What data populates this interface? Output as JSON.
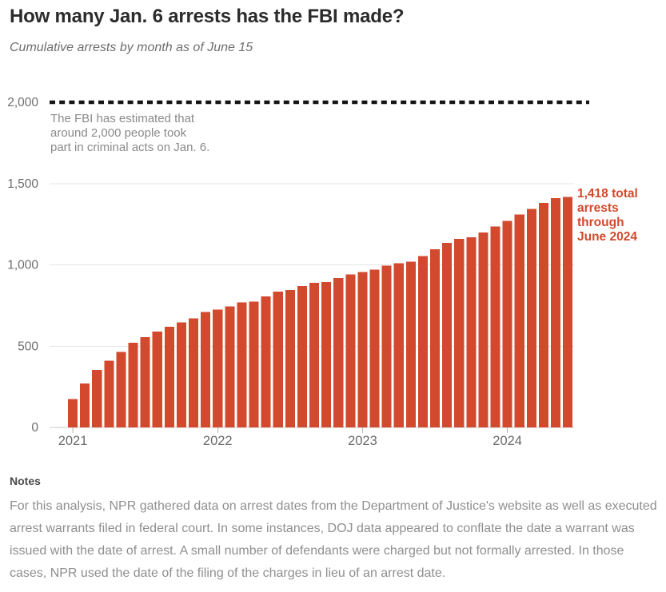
{
  "header": {
    "title": "How many Jan. 6 arrests has the FBI made?",
    "subtitle": "Cumulative arrests by month as of June 15"
  },
  "chart_data": {
    "type": "bar",
    "title": "How many Jan. 6 arrests has the FBI made?",
    "subtitle": "Cumulative arrests by month as of June 15",
    "xlabel": "",
    "ylabel": "",
    "ylim": [
      0,
      2000
    ],
    "grid": "horizontal",
    "bar_color": "#d3492d",
    "axis_label_color": "#6a6a6a",
    "gridline_color": "#e4e4e4",
    "baseline_color": "#c8c8c8",
    "tick_color": "#b5b5b5",
    "yticks": [
      0,
      500,
      1000,
      1500,
      2000
    ],
    "ytick_labels": [
      "0",
      "500",
      "1,000",
      "1,500",
      "2,000"
    ],
    "xtick_labels": [
      "2021",
      "2022",
      "2023",
      "2024"
    ],
    "xtick_month_indices": [
      0,
      12,
      24,
      36
    ],
    "x": [
      "Jan 2021",
      "Feb 2021",
      "Mar 2021",
      "Apr 2021",
      "May 2021",
      "Jun 2021",
      "Jul 2021",
      "Aug 2021",
      "Sep 2021",
      "Oct 2021",
      "Nov 2021",
      "Dec 2021",
      "Jan 2022",
      "Feb 2022",
      "Mar 2022",
      "Apr 2022",
      "May 2022",
      "Jun 2022",
      "Jul 2022",
      "Aug 2022",
      "Sep 2022",
      "Oct 2022",
      "Nov 2022",
      "Dec 2022",
      "Jan 2023",
      "Feb 2023",
      "Mar 2023",
      "Apr 2023",
      "May 2023",
      "Jun 2023",
      "Jul 2023",
      "Aug 2023",
      "Sep 2023",
      "Oct 2023",
      "Nov 2023",
      "Dec 2023",
      "Jan 2024",
      "Feb 2024",
      "Mar 2024",
      "Apr 2024",
      "May 2024",
      "Jun 2024"
    ],
    "values": [
      175,
      270,
      355,
      410,
      465,
      520,
      555,
      590,
      620,
      645,
      670,
      710,
      725,
      745,
      770,
      775,
      805,
      835,
      845,
      870,
      890,
      895,
      920,
      940,
      955,
      970,
      995,
      1010,
      1020,
      1055,
      1095,
      1135,
      1160,
      1170,
      1200,
      1235,
      1270,
      1310,
      1345,
      1380,
      1410,
      1418
    ],
    "reference_line": {
      "value": 2000,
      "style": "dotted",
      "color": "#141414"
    },
    "annotations": [
      {
        "id": "fbi-estimate-annotation",
        "lines": [
          "The FBI has estimated that",
          "around 2,000 people took",
          "part in criminal acts on Jan. 6."
        ],
        "color": "#8a8a8a",
        "bold": false
      },
      {
        "id": "total-arrests-annotation",
        "lines": [
          "1,418 total",
          "arrests",
          "through",
          "June 2024"
        ],
        "color": "#d3492d",
        "bold": true
      }
    ],
    "legend": null
  },
  "notes": {
    "heading": "Notes",
    "body": "For this analysis, NPR gathered data on arrest dates from the Department of Justice's website as well as executed arrest warrants filed in federal court. In some instances, DOJ data appeared to conflate the date a warrant was issued with the date of arrest. A small number of defendants were charged but not formally arrested. In those cases, NPR used the date of the filing of the charges in lieu of an arrest date."
  }
}
